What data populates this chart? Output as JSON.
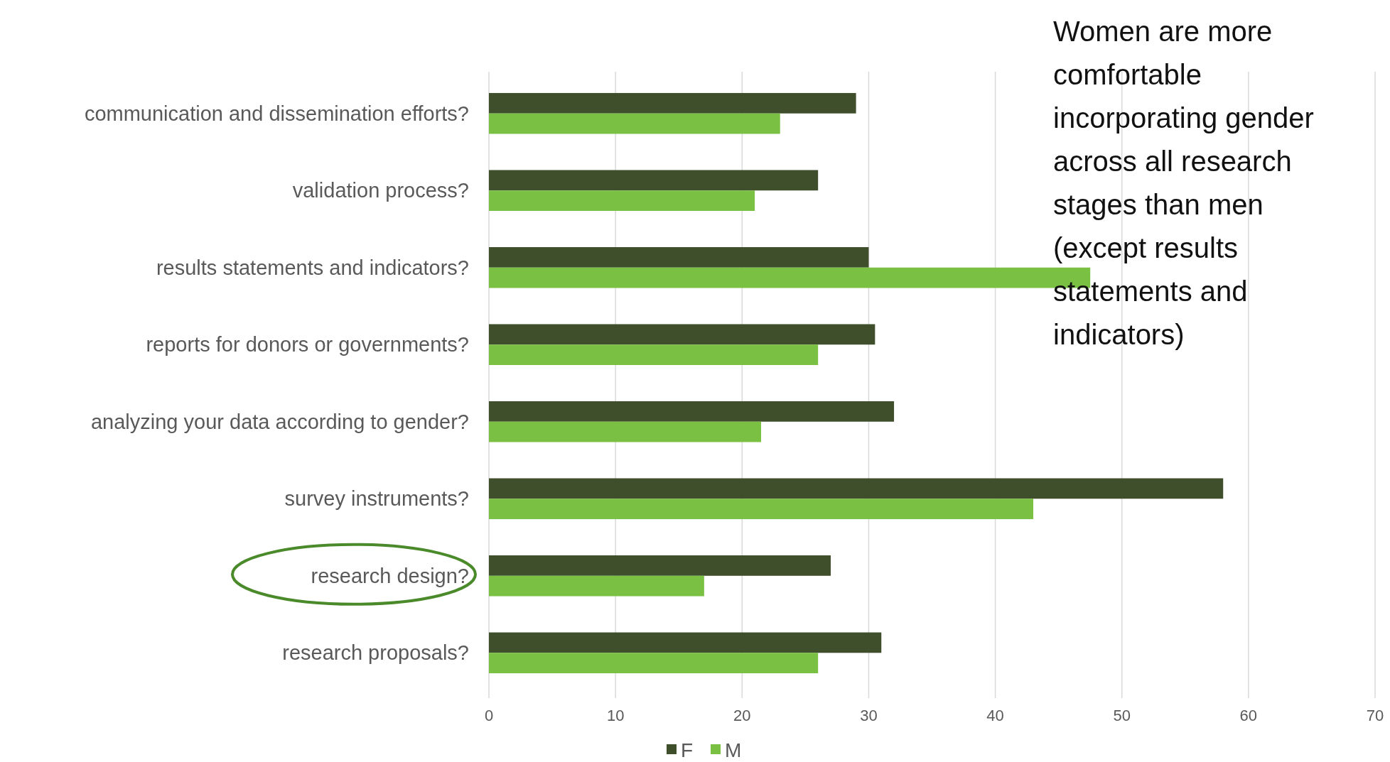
{
  "chart_data": {
    "type": "bar",
    "orientation": "horizontal",
    "categories": [
      "communication and dissemination efforts?",
      "validation process?",
      "results statements and indicators?",
      "reports for donors or governments?",
      "analyzing your data according to gender?",
      "survey instruments?",
      "research design?",
      "research proposals?"
    ],
    "series": [
      {
        "name": "F",
        "color": "#3f4e2b",
        "values": [
          29,
          26,
          30,
          30.5,
          32,
          58,
          27,
          31
        ]
      },
      {
        "name": "M",
        "color": "#79c043",
        "values": [
          23,
          21,
          47.5,
          26,
          21.5,
          43,
          17,
          26
        ]
      }
    ],
    "xlim": [
      0,
      70
    ],
    "xticks": [
      0,
      10,
      20,
      30,
      40,
      50,
      60,
      70
    ],
    "grid": "x",
    "legend": "bottom",
    "annotations": [
      "Women are more comfortable incorporating gender across all research stages than men (except results statements and indicators)"
    ]
  }
}
